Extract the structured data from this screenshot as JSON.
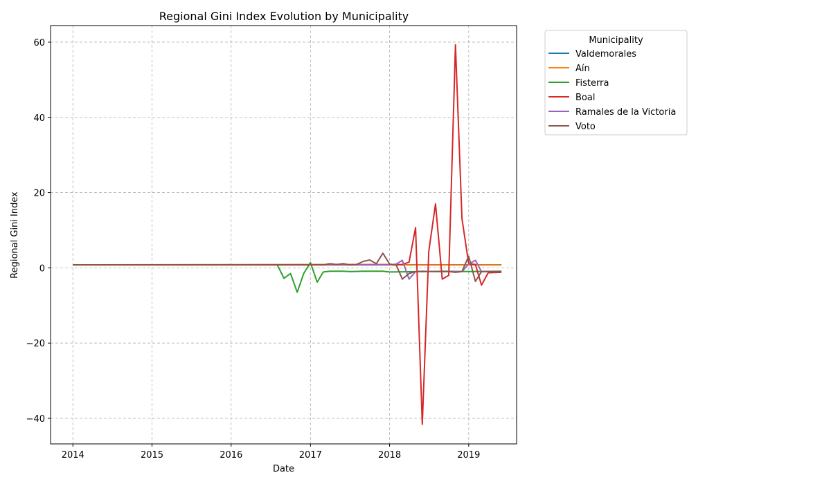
{
  "chart_data": {
    "type": "line",
    "title": "Regional Gini Index Evolution by Municipality",
    "xlabel": "Date",
    "ylabel": "Regional Gini Index",
    "xlim": [
      "2013-09-20",
      "2019-08-10"
    ],
    "ylim": [
      -46.8,
      64.4
    ],
    "xticks": [
      "2014-01-01",
      "2015-01-01",
      "2016-01-01",
      "2017-01-01",
      "2018-01-01",
      "2019-01-01"
    ],
    "xtick_labels": [
      "2014",
      "2015",
      "2016",
      "2017",
      "2018",
      "2019"
    ],
    "yticks": [
      -40,
      -20,
      0,
      20,
      40,
      60
    ],
    "ytick_labels": [
      "−40",
      "−20",
      "0",
      "20",
      "40",
      "60"
    ],
    "grid": true,
    "legend": {
      "title": "Municipality",
      "placement": "upper-left-outside"
    },
    "series": [
      {
        "name": "Valdemorales",
        "color": "#1f77b4",
        "points": [
          [
            "2014-01-01",
            0.8
          ],
          [
            "2019-06-01",
            0.8
          ]
        ]
      },
      {
        "name": "Aín",
        "color": "#ff7f0e",
        "points": [
          [
            "2014-01-01",
            0.75
          ],
          [
            "2019-06-01",
            0.75
          ]
        ]
      },
      {
        "name": "Fisterra",
        "color": "#2ca02c",
        "points": [
          [
            "2014-01-01",
            0.8
          ],
          [
            "2016-08-01",
            0.8
          ],
          [
            "2016-09-01",
            -2.8
          ],
          [
            "2016-10-01",
            -1.5
          ],
          [
            "2016-11-01",
            -6.5
          ],
          [
            "2016-12-01",
            -1.5
          ],
          [
            "2017-01-01",
            1.4
          ],
          [
            "2017-02-01",
            -3.8
          ],
          [
            "2017-03-01",
            -1.1
          ],
          [
            "2017-04-01",
            -0.9
          ],
          [
            "2017-06-01",
            -0.9
          ],
          [
            "2017-07-01",
            -1.0
          ],
          [
            "2017-09-01",
            -0.9
          ],
          [
            "2017-12-01",
            -0.9
          ],
          [
            "2018-01-01",
            -1.1
          ],
          [
            "2018-06-01",
            -1.0
          ],
          [
            "2018-09-01",
            -0.9
          ],
          [
            "2019-01-01",
            -1.0
          ],
          [
            "2019-06-01",
            -0.9
          ]
        ]
      },
      {
        "name": "Boal",
        "color": "#d62728",
        "points": [
          [
            "2014-01-01",
            0.8
          ],
          [
            "2018-03-01",
            0.9
          ],
          [
            "2018-04-01",
            1.5
          ],
          [
            "2018-05-01",
            10.7
          ],
          [
            "2018-06-01",
            -41.6
          ],
          [
            "2018-07-01",
            4.4
          ],
          [
            "2018-08-01",
            17.0
          ],
          [
            "2018-09-01",
            -3.0
          ],
          [
            "2018-10-01",
            -2.0
          ],
          [
            "2018-11-01",
            59.3
          ],
          [
            "2018-12-01",
            13.1
          ],
          [
            "2019-01-01",
            1.1
          ],
          [
            "2019-02-01",
            0.9
          ],
          [
            "2019-03-01",
            -4.6
          ],
          [
            "2019-04-01",
            -1.3
          ],
          [
            "2019-06-01",
            -1.2
          ]
        ]
      },
      {
        "name": "Ramales de la Victoria",
        "color": "#9467bd",
        "points": [
          [
            "2014-01-01",
            0.8
          ],
          [
            "2018-01-01",
            0.8
          ],
          [
            "2018-02-01",
            1.0
          ],
          [
            "2018-03-01",
            2.0
          ],
          [
            "2018-04-01",
            -3.0
          ],
          [
            "2018-05-01",
            -1.0
          ],
          [
            "2018-06-01",
            -0.9
          ],
          [
            "2018-09-01",
            -1.0
          ],
          [
            "2018-12-01",
            -1.0
          ],
          [
            "2019-01-01",
            1.0
          ],
          [
            "2019-02-01",
            2.0
          ],
          [
            "2019-03-01",
            -1.0
          ],
          [
            "2019-06-01",
            -1.0
          ]
        ]
      },
      {
        "name": "Voto",
        "color": "#8c564b",
        "points": [
          [
            "2014-01-01",
            0.8
          ],
          [
            "2017-03-01",
            0.8
          ],
          [
            "2017-04-01",
            1.1
          ],
          [
            "2017-05-01",
            0.9
          ],
          [
            "2017-06-01",
            1.1
          ],
          [
            "2017-07-01",
            0.8
          ],
          [
            "2017-08-01",
            0.9
          ],
          [
            "2017-09-01",
            1.7
          ],
          [
            "2017-10-01",
            2.1
          ],
          [
            "2017-11-01",
            1.1
          ],
          [
            "2017-12-01",
            3.9
          ],
          [
            "2018-01-01",
            1.0
          ],
          [
            "2018-02-01",
            0.7
          ],
          [
            "2018-03-01",
            -3.0
          ],
          [
            "2018-04-01",
            -1.5
          ],
          [
            "2018-05-01",
            -1.0
          ],
          [
            "2018-07-01",
            -1.0
          ],
          [
            "2018-10-01",
            -1.0
          ],
          [
            "2018-11-01",
            -1.2
          ],
          [
            "2018-12-01",
            -1.0
          ],
          [
            "2019-01-01",
            3.1
          ],
          [
            "2019-02-01",
            -3.6
          ],
          [
            "2019-03-01",
            -1.0
          ],
          [
            "2019-06-01",
            -1.0
          ]
        ]
      }
    ]
  }
}
